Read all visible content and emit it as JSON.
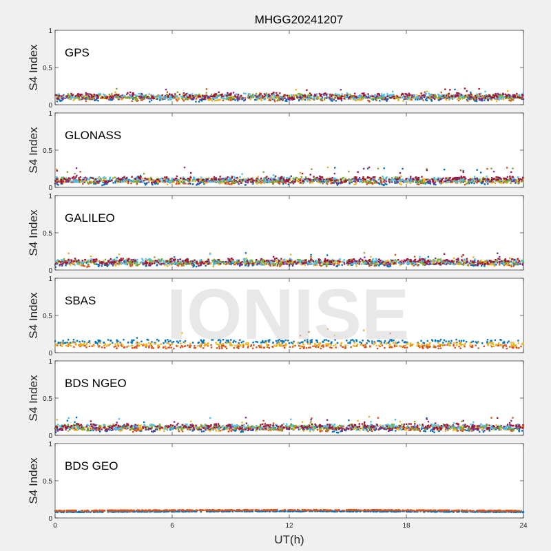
{
  "chart_data": {
    "type": "scatter",
    "title": "MHGG20241207",
    "xlabel": "UT(h)",
    "ylabel": "S4 Index",
    "xlim": [
      0,
      24
    ],
    "ylim": [
      0,
      1
    ],
    "xticks": [
      "0",
      "6",
      "12",
      "18",
      "24"
    ],
    "xtick_values": [
      0,
      6,
      12,
      18,
      24
    ],
    "yticks": [
      "0",
      "0.5",
      "1"
    ],
    "ytick_values": [
      0,
      0.5,
      1
    ],
    "watermark": "IONISE",
    "grid": false,
    "series_colors": [
      "#0072BD",
      "#D95319",
      "#EDB120",
      "#7E2F8E",
      "#77AC30",
      "#4DBEEE",
      "#A2142F"
    ],
    "panels": [
      {
        "label": "GPS",
        "baseline": 0.08,
        "spread": 0.05,
        "spike_max": 0.22,
        "colors": 7
      },
      {
        "label": "GLONASS",
        "baseline": 0.07,
        "spread": 0.05,
        "spike_max": 0.27,
        "colors": 7
      },
      {
        "label": "GALILEO",
        "baseline": 0.08,
        "spread": 0.05,
        "spike_max": 0.24,
        "colors": 7
      },
      {
        "label": "SBAS",
        "baseline": 0.12,
        "spread": 0.04,
        "spike_max": 0.32,
        "colors": 3
      },
      {
        "label": "BDS NGEO",
        "baseline": 0.08,
        "spread": 0.05,
        "spike_max": 0.25,
        "colors": 7
      },
      {
        "label": "BDS GEO",
        "baseline": 0.09,
        "spread": 0.01,
        "spike_max": 0.12,
        "colors": 2
      }
    ]
  }
}
